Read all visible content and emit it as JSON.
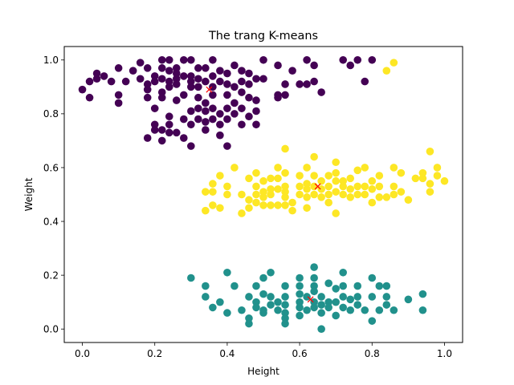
{
  "chart_data": {
    "type": "scatter",
    "title": "The trang K-means",
    "xlabel": "Height",
    "ylabel": "Weight",
    "xlim": [
      -0.05,
      1.05
    ],
    "ylim": [
      -0.05,
      1.05
    ],
    "xticks": [
      0.0,
      0.2,
      0.4,
      0.6,
      0.8,
      1.0
    ],
    "xtick_labels": [
      "0.0",
      "0.2",
      "0.4",
      "0.6",
      "0.8",
      "1.0"
    ],
    "yticks": [
      0.0,
      0.2,
      0.4,
      0.6,
      0.8,
      1.0
    ],
    "ytick_labels": [
      "0.0",
      "0.2",
      "0.4",
      "0.6",
      "0.8",
      "1.0"
    ],
    "grid": false,
    "legend": false,
    "series": [
      {
        "color": "#440154",
        "points": [
          [
            0.0,
            0.89
          ],
          [
            0.02,
            0.86
          ],
          [
            0.02,
            0.92
          ],
          [
            0.04,
            0.93
          ],
          [
            0.04,
            0.95
          ],
          [
            0.06,
            0.94
          ],
          [
            0.08,
            0.92
          ],
          [
            0.1,
            0.97
          ],
          [
            0.1,
            0.87
          ],
          [
            0.1,
            0.84
          ],
          [
            0.12,
            0.92
          ],
          [
            0.14,
            0.96
          ],
          [
            0.16,
            0.93
          ],
          [
            0.16,
            0.99
          ],
          [
            0.18,
            0.97
          ],
          [
            0.18,
            0.91
          ],
          [
            0.18,
            0.89
          ],
          [
            0.18,
            0.86
          ],
          [
            0.18,
            0.71
          ],
          [
            0.2,
            0.94
          ],
          [
            0.2,
            0.92
          ],
          [
            0.2,
            0.82
          ],
          [
            0.2,
            0.76
          ],
          [
            0.2,
            0.74
          ],
          [
            0.22,
            1.0
          ],
          [
            0.22,
            0.97
          ],
          [
            0.22,
            0.93
          ],
          [
            0.22,
            0.88
          ],
          [
            0.22,
            0.86
          ],
          [
            0.22,
            0.74
          ],
          [
            0.22,
            0.7
          ],
          [
            0.24,
            1.0
          ],
          [
            0.24,
            0.96
          ],
          [
            0.24,
            0.92
          ],
          [
            0.24,
            0.9
          ],
          [
            0.24,
            0.79
          ],
          [
            0.24,
            0.76
          ],
          [
            0.24,
            0.73
          ],
          [
            0.26,
            0.97
          ],
          [
            0.26,
            0.95
          ],
          [
            0.26,
            0.93
          ],
          [
            0.26,
            0.91
          ],
          [
            0.26,
            0.85
          ],
          [
            0.26,
            0.73
          ],
          [
            0.28,
            1.0
          ],
          [
            0.28,
            0.94
          ],
          [
            0.28,
            0.87
          ],
          [
            0.28,
            0.78
          ],
          [
            0.28,
            0.71
          ],
          [
            0.3,
            1.0
          ],
          [
            0.3,
            0.94
          ],
          [
            0.3,
            0.92
          ],
          [
            0.3,
            0.9
          ],
          [
            0.3,
            0.81
          ],
          [
            0.3,
            0.76
          ],
          [
            0.3,
            0.68
          ],
          [
            0.32,
            0.97
          ],
          [
            0.32,
            0.93
          ],
          [
            0.32,
            0.9
          ],
          [
            0.32,
            0.86
          ],
          [
            0.32,
            0.82
          ],
          [
            0.32,
            0.78
          ],
          [
            0.34,
            0.97
          ],
          [
            0.34,
            0.92
          ],
          [
            0.34,
            0.84
          ],
          [
            0.34,
            0.81
          ],
          [
            0.34,
            0.77
          ],
          [
            0.34,
            0.74
          ],
          [
            0.36,
            1.0
          ],
          [
            0.36,
            0.94
          ],
          [
            0.36,
            0.9
          ],
          [
            0.36,
            0.87
          ],
          [
            0.36,
            0.82
          ],
          [
            0.36,
            0.78
          ],
          [
            0.38,
            0.96
          ],
          [
            0.38,
            0.92
          ],
          [
            0.38,
            0.8
          ],
          [
            0.38,
            0.76
          ],
          [
            0.38,
            0.72
          ],
          [
            0.4,
            0.95
          ],
          [
            0.4,
            0.91
          ],
          [
            0.4,
            0.87
          ],
          [
            0.4,
            0.82
          ],
          [
            0.4,
            0.78
          ],
          [
            0.4,
            0.68
          ],
          [
            0.42,
            0.98
          ],
          [
            0.42,
            0.9
          ],
          [
            0.42,
            0.84
          ],
          [
            0.42,
            0.8
          ],
          [
            0.44,
            0.96
          ],
          [
            0.44,
            0.92
          ],
          [
            0.44,
            0.88
          ],
          [
            0.44,
            0.82
          ],
          [
            0.44,
            0.76
          ],
          [
            0.46,
            0.95
          ],
          [
            0.46,
            0.91
          ],
          [
            0.46,
            0.86
          ],
          [
            0.46,
            0.79
          ],
          [
            0.48,
            0.93
          ],
          [
            0.48,
            0.85
          ],
          [
            0.48,
            0.81
          ],
          [
            0.48,
            0.76
          ],
          [
            0.5,
            1.0
          ],
          [
            0.5,
            0.93
          ],
          [
            0.54,
            0.98
          ],
          [
            0.54,
            0.87
          ],
          [
            0.54,
            0.86
          ],
          [
            0.56,
            0.91
          ],
          [
            0.56,
            0.87
          ],
          [
            0.58,
            0.96
          ],
          [
            0.6,
            0.91
          ],
          [
            0.62,
            1.0
          ],
          [
            0.62,
            0.91
          ],
          [
            0.64,
            0.92
          ],
          [
            0.64,
            0.98
          ],
          [
            0.66,
            0.88
          ],
          [
            0.72,
            1.0
          ],
          [
            0.74,
            0.98
          ],
          [
            0.76,
            1.0
          ],
          [
            0.78,
            0.92
          ],
          [
            0.8,
            1.0
          ]
        ]
      },
      {
        "color": "#21918c",
        "points": [
          [
            0.3,
            0.19
          ],
          [
            0.34,
            0.16
          ],
          [
            0.34,
            0.12
          ],
          [
            0.36,
            0.08
          ],
          [
            0.38,
            0.1
          ],
          [
            0.4,
            0.21
          ],
          [
            0.4,
            0.06
          ],
          [
            0.42,
            0.16
          ],
          [
            0.44,
            0.07
          ],
          [
            0.46,
            0.12
          ],
          [
            0.46,
            0.04
          ],
          [
            0.46,
            0.02
          ],
          [
            0.48,
            0.16
          ],
          [
            0.48,
            0.1
          ],
          [
            0.48,
            0.08
          ],
          [
            0.5,
            0.19
          ],
          [
            0.5,
            0.13
          ],
          [
            0.5,
            0.07
          ],
          [
            0.5,
            0.06
          ],
          [
            0.52,
            0.21
          ],
          [
            0.52,
            0.12
          ],
          [
            0.52,
            0.09
          ],
          [
            0.54,
            0.1
          ],
          [
            0.54,
            0.07
          ],
          [
            0.56,
            0.16
          ],
          [
            0.56,
            0.12
          ],
          [
            0.56,
            0.09
          ],
          [
            0.56,
            0.06
          ],
          [
            0.56,
            0.04
          ],
          [
            0.56,
            0.02
          ],
          [
            0.6,
            0.19
          ],
          [
            0.6,
            0.16
          ],
          [
            0.6,
            0.13
          ],
          [
            0.6,
            0.1
          ],
          [
            0.6,
            0.08
          ],
          [
            0.6,
            0.05
          ],
          [
            0.62,
            0.12
          ],
          [
            0.62,
            0.07
          ],
          [
            0.64,
            0.23
          ],
          [
            0.64,
            0.19
          ],
          [
            0.64,
            0.16
          ],
          [
            0.64,
            0.14
          ],
          [
            0.64,
            0.1
          ],
          [
            0.64,
            0.08
          ],
          [
            0.66,
            0.12
          ],
          [
            0.66,
            0.09
          ],
          [
            0.66,
            0.06
          ],
          [
            0.66,
            0.0
          ],
          [
            0.68,
            0.17
          ],
          [
            0.68,
            0.1
          ],
          [
            0.68,
            0.08
          ],
          [
            0.7,
            0.15
          ],
          [
            0.7,
            0.1
          ],
          [
            0.7,
            0.05
          ],
          [
            0.72,
            0.21
          ],
          [
            0.72,
            0.16
          ],
          [
            0.72,
            0.12
          ],
          [
            0.72,
            0.08
          ],
          [
            0.74,
            0.11
          ],
          [
            0.74,
            0.07
          ],
          [
            0.76,
            0.16
          ],
          [
            0.76,
            0.12
          ],
          [
            0.76,
            0.09
          ],
          [
            0.78,
            0.07
          ],
          [
            0.8,
            0.19
          ],
          [
            0.8,
            0.12
          ],
          [
            0.8,
            0.03
          ],
          [
            0.82,
            0.16
          ],
          [
            0.82,
            0.07
          ],
          [
            0.84,
            0.16
          ],
          [
            0.84,
            0.12
          ],
          [
            0.84,
            0.09
          ],
          [
            0.86,
            0.07
          ],
          [
            0.9,
            0.11
          ],
          [
            0.94,
            0.13
          ],
          [
            0.94,
            0.07
          ]
        ]
      },
      {
        "color": "#fde725",
        "points": [
          [
            0.34,
            0.44
          ],
          [
            0.34,
            0.51
          ],
          [
            0.36,
            0.46
          ],
          [
            0.36,
            0.51
          ],
          [
            0.36,
            0.54
          ],
          [
            0.38,
            0.45
          ],
          [
            0.38,
            0.57
          ],
          [
            0.4,
            0.5
          ],
          [
            0.4,
            0.53
          ],
          [
            0.42,
            0.6
          ],
          [
            0.44,
            0.43
          ],
          [
            0.44,
            0.5
          ],
          [
            0.46,
            0.45
          ],
          [
            0.46,
            0.48
          ],
          [
            0.46,
            0.56
          ],
          [
            0.48,
            0.47
          ],
          [
            0.48,
            0.5
          ],
          [
            0.48,
            0.53
          ],
          [
            0.48,
            0.58
          ],
          [
            0.5,
            0.46
          ],
          [
            0.5,
            0.49
          ],
          [
            0.5,
            0.51
          ],
          [
            0.5,
            0.55
          ],
          [
            0.52,
            0.46
          ],
          [
            0.52,
            0.5
          ],
          [
            0.52,
            0.52
          ],
          [
            0.52,
            0.56
          ],
          [
            0.54,
            0.46
          ],
          [
            0.54,
            0.52
          ],
          [
            0.54,
            0.56
          ],
          [
            0.54,
            0.6
          ],
          [
            0.56,
            0.46
          ],
          [
            0.56,
            0.49
          ],
          [
            0.56,
            0.51
          ],
          [
            0.56,
            0.53
          ],
          [
            0.56,
            0.58
          ],
          [
            0.56,
            0.67
          ],
          [
            0.58,
            0.44
          ],
          [
            0.58,
            0.47
          ],
          [
            0.6,
            0.5
          ],
          [
            0.6,
            0.53
          ],
          [
            0.6,
            0.57
          ],
          [
            0.62,
            0.45
          ],
          [
            0.62,
            0.49
          ],
          [
            0.62,
            0.52
          ],
          [
            0.62,
            0.54
          ],
          [
            0.62,
            0.6
          ],
          [
            0.64,
            0.5
          ],
          [
            0.64,
            0.53
          ],
          [
            0.64,
            0.57
          ],
          [
            0.64,
            0.64
          ],
          [
            0.66,
            0.49
          ],
          [
            0.66,
            0.52
          ],
          [
            0.66,
            0.55
          ],
          [
            0.68,
            0.47
          ],
          [
            0.68,
            0.5
          ],
          [
            0.68,
            0.53
          ],
          [
            0.68,
            0.57
          ],
          [
            0.7,
            0.43
          ],
          [
            0.7,
            0.51
          ],
          [
            0.7,
            0.55
          ],
          [
            0.7,
            0.58
          ],
          [
            0.7,
            0.62
          ],
          [
            0.72,
            0.5
          ],
          [
            0.72,
            0.53
          ],
          [
            0.72,
            0.55
          ],
          [
            0.74,
            0.49
          ],
          [
            0.74,
            0.52
          ],
          [
            0.74,
            0.56
          ],
          [
            0.76,
            0.5
          ],
          [
            0.76,
            0.53
          ],
          [
            0.76,
            0.59
          ],
          [
            0.78,
            0.5
          ],
          [
            0.78,
            0.53
          ],
          [
            0.78,
            0.6
          ],
          [
            0.8,
            0.47
          ],
          [
            0.8,
            0.52
          ],
          [
            0.8,
            0.55
          ],
          [
            0.82,
            0.49
          ],
          [
            0.82,
            0.53
          ],
          [
            0.82,
            0.57
          ],
          [
            0.84,
            0.49
          ],
          [
            0.84,
            0.96
          ],
          [
            0.86,
            0.5
          ],
          [
            0.86,
            0.53
          ],
          [
            0.86,
            0.6
          ],
          [
            0.86,
            0.99
          ],
          [
            0.88,
            0.51
          ],
          [
            0.88,
            0.58
          ],
          [
            0.9,
            0.48
          ],
          [
            0.92,
            0.56
          ],
          [
            0.94,
            0.56
          ],
          [
            0.94,
            0.58
          ],
          [
            0.96,
            0.51
          ],
          [
            0.96,
            0.54
          ],
          [
            0.96,
            0.66
          ],
          [
            0.98,
            0.57
          ],
          [
            0.98,
            0.6
          ],
          [
            1.0,
            0.55
          ]
        ]
      }
    ],
    "centroids": {
      "color": "#ff0000",
      "marker": "x",
      "points": [
        [
          0.35,
          0.89
        ],
        [
          0.63,
          0.11
        ],
        [
          0.65,
          0.53
        ]
      ]
    }
  }
}
